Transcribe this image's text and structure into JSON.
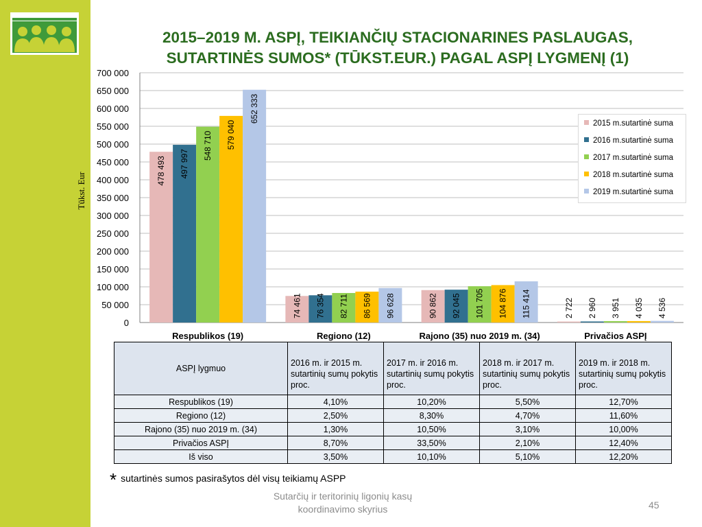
{
  "title_lines": [
    "2015–2019 M. ASPĮ, TEIKIANČIŲ STACIONARINES PASLAUGAS,",
    "SUTARTINĖS SUMOS* (TŪKST.EUR.) PAGAL ASPĮ LYGMENĮ (1)"
  ],
  "chart_data": {
    "type": "bar",
    "categories": [
      "Respublikos (19)",
      "Regiono (12)",
      "Rajono (35) nuo 2019 m. (34)",
      "Privačios ASPĮ"
    ],
    "series": [
      {
        "name": "2015 m.sutartinė suma",
        "values": [
          478493,
          74461,
          90862,
          2722
        ],
        "labels": [
          "478 493",
          "74 461",
          "90 862",
          "2 722"
        ],
        "color": "#e6b8b7"
      },
      {
        "name": "2016 m.sutartinė suma",
        "values": [
          497997,
          76354,
          92045,
          2960
        ],
        "labels": [
          "497 997",
          "76 354",
          "92 045",
          "2 960"
        ],
        "color": "#31708f"
      },
      {
        "name": "2017 m.sutartinė suma",
        "values": [
          548710,
          82711,
          101705,
          3951
        ],
        "labels": [
          "548 710",
          "82 711",
          "101 705",
          "3 951"
        ],
        "color": "#92d050"
      },
      {
        "name": "2018 m.sutartinė suma",
        "values": [
          579040,
          86569,
          104876,
          4035
        ],
        "labels": [
          "579 040",
          "86 569",
          "104 876",
          "4 035"
        ],
        "color": "#ffc000"
      },
      {
        "name": "2019 m.sutartinė suma",
        "values": [
          652333,
          96628,
          115414,
          4536
        ],
        "labels": [
          "652 333",
          "96 628",
          "115 414",
          "4 536"
        ],
        "color": "#b4c7e7"
      }
    ],
    "ylabel": "Tūkst. Eur",
    "ylim": [
      0,
      700000
    ],
    "yticks": [
      "0",
      "50 000",
      "100 000",
      "150 000",
      "200 000",
      "250 000",
      "300 000",
      "350 000",
      "400 000",
      "450 000",
      "500 000",
      "550 000",
      "600 000",
      "650 000",
      "700 000"
    ],
    "grid": true,
    "legend_position": "right"
  },
  "table": {
    "header": [
      "ASPĮ lygmuo",
      "2016 m. ir 2015 m. sutartinių sumų pokytis proc.",
      "2017 m. ir 2016 m. sutartinių sumų pokytis proc.",
      "2018 m. ir 2017 m. sutartinių sumų pokytis proc.",
      "2019 m. ir 2018 m. sutartinių sumų pokytis proc."
    ],
    "rows": [
      [
        "Respublikos (19)",
        "4,10%",
        "10,20%",
        "5,50%",
        "12,70%"
      ],
      [
        "Regiono (12)",
        "2,50%",
        "8,30%",
        "4,70%",
        "11,60%"
      ],
      [
        "Rajono (35) nuo 2019 m. (34)",
        "1,30%",
        "10,50%",
        "3,10%",
        "10,00%"
      ],
      [
        "Privačios ASPĮ",
        "8,70%",
        "33,50%",
        "2,10%",
        "12,40%"
      ],
      [
        "Iš viso",
        "3,50%",
        "10,10%",
        "5,10%",
        "12,20%"
      ]
    ]
  },
  "note": {
    "star": "*",
    "text": "sutartinės sumos pasirašytos dėl visų teikiamų ASPP"
  },
  "footer": {
    "line1": "Sutarčių ir teritorinių ligonių kasų",
    "line2": "koordinavimo skyrius",
    "page": "45"
  },
  "colors": {
    "sidebar": "#c6d236",
    "title": "#2b6c1f",
    "logo_green": "#3f9a3a"
  }
}
